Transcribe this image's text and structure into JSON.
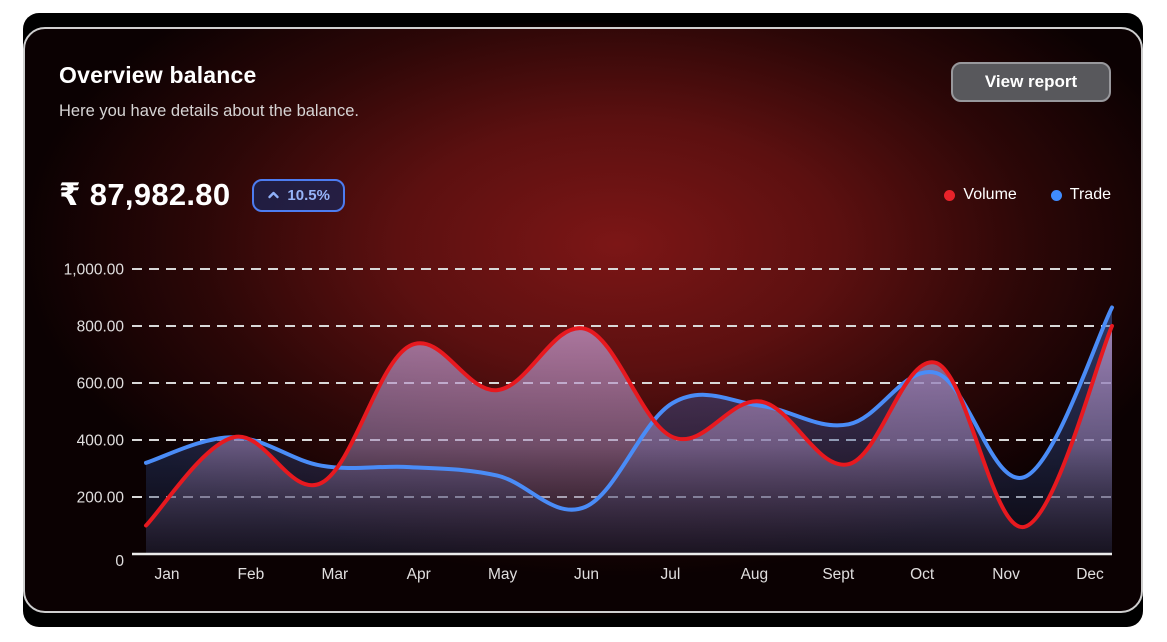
{
  "header": {
    "title": "Overview balance",
    "subtitle": "Here you have details about the balance.",
    "button_label": "View report"
  },
  "balance": {
    "amount_display": "₹ 87,982.80",
    "change_percent": "10.5%",
    "change_direction": "up"
  },
  "badge_colors": {
    "border": "#4d7cf0",
    "text": "#96b4f8",
    "background": "rgba(23,38,88,0.72)"
  },
  "chart_data": {
    "type": "area",
    "title": "Overview balance",
    "x": [
      "Jan",
      "Feb",
      "Mar",
      "Apr",
      "May",
      "Jun",
      "Jul",
      "Aug",
      "Sept",
      "Oct",
      "Nov",
      "Dec"
    ],
    "series": [
      {
        "name": "Volume",
        "color": "#e7191f",
        "dot_color": "#e8232a",
        "values": [
          100,
          410,
          250,
          730,
          575,
          790,
          410,
          535,
          315,
          670,
          95,
          800
        ]
      },
      {
        "name": "Trade",
        "color": "#4a8cf7",
        "dot_color": "#3f8cff",
        "values": [
          320,
          410,
          310,
          305,
          275,
          165,
          530,
          520,
          455,
          635,
          270,
          865
        ]
      }
    ],
    "ylim": [
      0,
      1000
    ],
    "yticks": [
      {
        "value": 0,
        "label": "0"
      },
      {
        "value": 200,
        "label": "200.00"
      },
      {
        "value": 400,
        "label": "400.00"
      },
      {
        "value": 600,
        "label": "600.00"
      },
      {
        "value": 800,
        "label": "800.00"
      },
      {
        "value": 1000,
        "label": "1,000.00"
      }
    ],
    "grid": "horizontal dashed",
    "legend_position": "top-right",
    "tick_label_color": "#e0dede"
  }
}
